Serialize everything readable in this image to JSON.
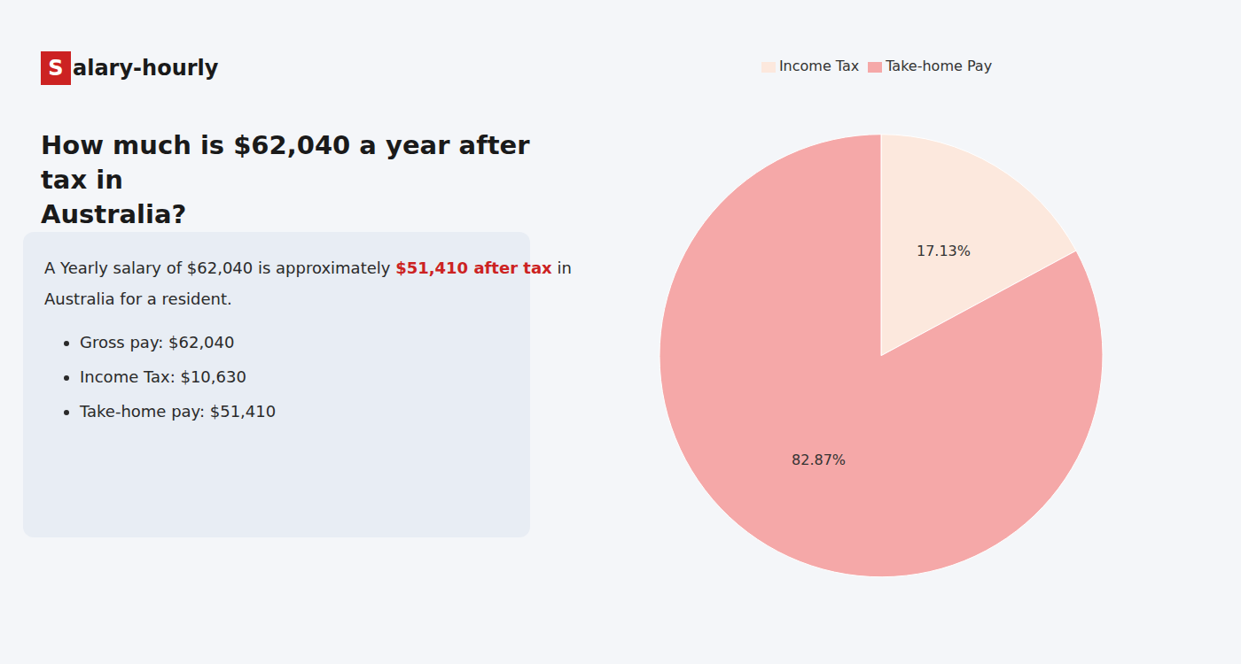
{
  "chart_data": {
    "type": "pie",
    "title": "How much is $62,040 a year after tax in\nAustralia?",
    "categories": [
      "Income Tax",
      "Take-home Pay"
    ],
    "values": [
      17.13,
      82.87
    ],
    "value_labels": [
      "17.13%",
      "82.87%"
    ],
    "colors": [
      "#fce8dd",
      "#f5a8a8"
    ],
    "data_labels": true,
    "legend": "top",
    "annotations": [
      {
        "text": "S",
        "color": "#cc2222"
      },
      {
        "text": "alary-hourly"
      },
      {
        "text": "A Yearly salary of $62,040 is approximately "
      },
      {
        "text": "$51,410 after tax",
        "color": "#cc2222"
      },
      {
        "text": " in"
      },
      {
        "text": "Australia for a resident."
      },
      {
        "text": "Gross pay: $62,040"
      },
      {
        "text": "Income Tax: $10,630"
      },
      {
        "text": "Take-home pay: $51,410"
      }
    ]
  }
}
